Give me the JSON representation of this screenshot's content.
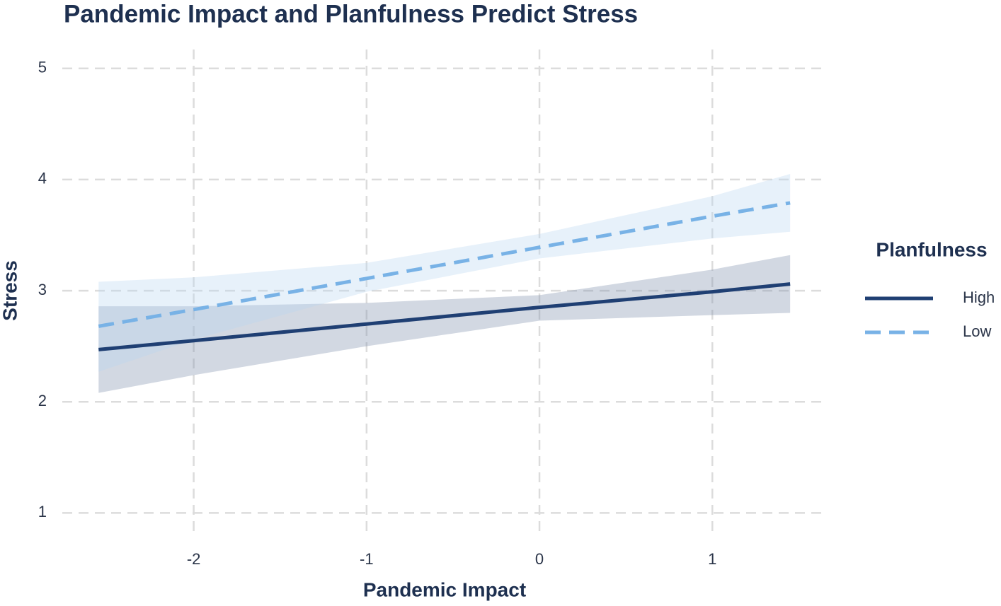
{
  "chart_data": {
    "type": "line",
    "title": "Pandemic Impact and Planfulness Predict Stress",
    "x_label": "Pandemic Impact",
    "y_label": "Stress",
    "legend_title": "Planfulness",
    "x": [
      -2.55,
      -2,
      -1,
      0,
      1,
      1.45
    ],
    "series": [
      {
        "name": "High",
        "color": "#1f3f73",
        "band_color": "#7f8fab",
        "dash": false,
        "values": [
          2.47,
          2.55,
          2.7,
          2.85,
          2.99,
          3.06
        ],
        "lower": [
          2.08,
          2.24,
          2.5,
          2.73,
          2.78,
          2.8
        ],
        "upper": [
          2.86,
          2.86,
          2.89,
          2.96,
          3.19,
          3.32
        ]
      },
      {
        "name": "Low",
        "color": "#78b2e6",
        "band_color": "#b9d6f2",
        "dash": true,
        "values": [
          2.68,
          2.83,
          3.11,
          3.39,
          3.67,
          3.79
        ],
        "lower": [
          2.27,
          2.56,
          2.99,
          3.29,
          3.47,
          3.53
        ],
        "upper": [
          3.08,
          3.12,
          3.25,
          3.51,
          3.85,
          4.05
        ]
      }
    ],
    "xlim": [
      -2.76,
      1.65
    ],
    "ylim": [
      0.78,
      5.17
    ],
    "xticks": [
      -2,
      -1,
      0,
      1
    ],
    "yticks": [
      1,
      2,
      3,
      4,
      5
    ],
    "grid": true,
    "legend": "right"
  }
}
